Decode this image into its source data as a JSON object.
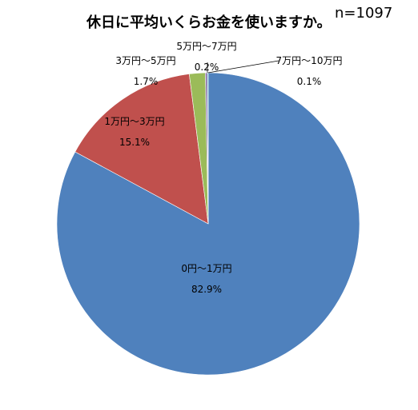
{
  "chart_data": {
    "type": "pie",
    "title": "休日に平均いくらお金を使いますか。",
    "sample_size": "n=1097",
    "slices": [
      {
        "label": "0円～1万円",
        "value": 82.9,
        "value_label": "82.9%",
        "color": "#4F81BD"
      },
      {
        "label": "1万円～3万円",
        "value": 15.1,
        "value_label": "15.1%",
        "color": "#C0504D"
      },
      {
        "label": "3万円～5万円",
        "value": 1.7,
        "value_label": "1.7%",
        "color": "#9BBB59"
      },
      {
        "label": "5万円～7万円",
        "value": 0.2,
        "value_label": "0.2%",
        "color": "#8064A2"
      },
      {
        "label": "7万円～10万円",
        "value": 0.1,
        "value_label": "0.1%",
        "color": "#4BACC6"
      }
    ],
    "legend": "none"
  }
}
